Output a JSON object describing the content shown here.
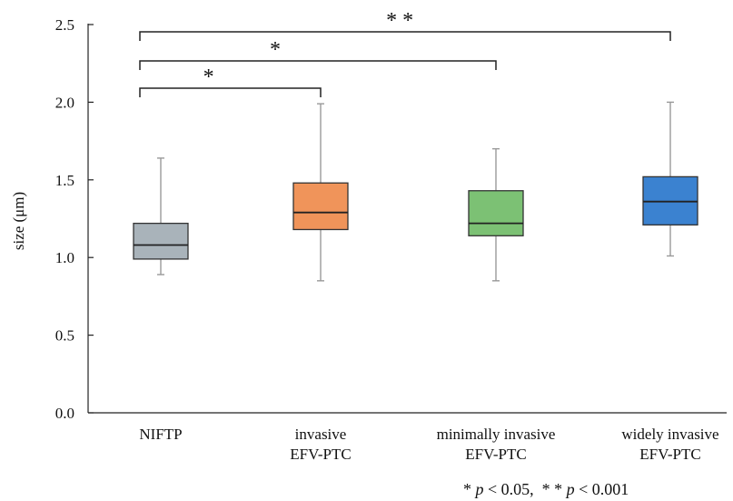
{
  "chart_data": {
    "type": "boxplot",
    "ylabel": "size (μm)",
    "ylim": [
      0,
      2.5
    ],
    "yticks": [
      "0.0",
      "0.5",
      "1.0",
      "1.5",
      "2.0",
      "2.5"
    ],
    "grid": false,
    "categories": [
      [
        "NIFTP"
      ],
      [
        "invasive",
        "EFV-PTC"
      ],
      [
        "minimally invasive",
        "EFV-PTC"
      ],
      [
        "widely invasive",
        "EFV-PTC"
      ]
    ],
    "series": [
      {
        "name": "NIFTP",
        "color": "#a9b3ba",
        "whisker_low": 0.89,
        "q1": 0.99,
        "median": 1.08,
        "q3": 1.22,
        "whisker_high": 1.64
      },
      {
        "name": "invasive EFV-PTC",
        "color": "#f0945a",
        "whisker_low": 0.85,
        "q1": 1.18,
        "median": 1.29,
        "q3": 1.48,
        "whisker_high": 1.99
      },
      {
        "name": "minimally invasive EFV-PTC",
        "color": "#7cc174",
        "whisker_low": 0.85,
        "q1": 1.14,
        "median": 1.22,
        "q3": 1.43,
        "whisker_high": 1.7
      },
      {
        "name": "widely invasive EFV-PTC",
        "color": "#3b82d0",
        "whisker_low": 1.01,
        "q1": 1.21,
        "median": 1.36,
        "q3": 1.52,
        "whisker_high": 2.0
      }
    ],
    "significance": [
      {
        "from": 0,
        "to": 1,
        "label": "*"
      },
      {
        "from": 0,
        "to": 2,
        "label": "*"
      },
      {
        "from": 0,
        "to": 3,
        "label": "* *"
      }
    ],
    "footnote": [
      {
        "text": "* ",
        "italic": false
      },
      {
        "text": "p",
        "italic": true
      },
      {
        "text": " < 0.05,  * * ",
        "italic": false
      },
      {
        "text": "p",
        "italic": true
      },
      {
        "text": " < 0.001",
        "italic": false
      }
    ]
  }
}
